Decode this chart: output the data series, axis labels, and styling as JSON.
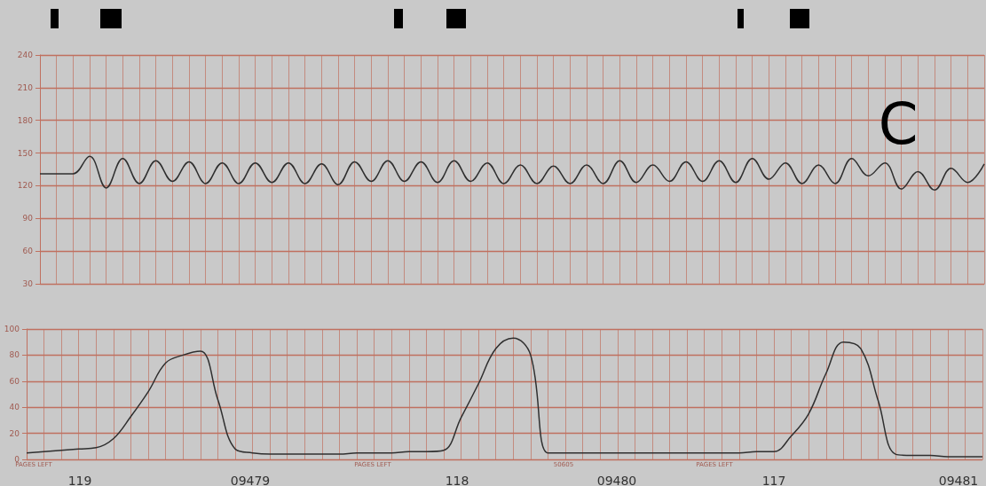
{
  "chart_data": [
    {
      "type": "line",
      "categories": [
        null,
        null,
        null,
        null,
        null,
        null,
        null,
        null,
        null,
        null,
        null,
        null,
        null,
        null,
        null,
        null,
        null,
        null,
        null,
        null,
        null,
        null,
        null,
        null,
        null,
        null,
        null,
        null,
        null,
        null,
        null,
        null,
        null,
        null,
        null,
        null,
        null,
        null,
        null,
        null,
        null,
        null,
        null,
        null,
        null,
        null,
        null,
        null,
        null,
        null,
        null,
        null,
        null,
        null,
        null,
        null,
        null,
        null
      ],
      "series": [
        {
          "color": "#2f2f2f",
          "values": [
            131,
            131,
            131,
            147,
            118,
            145,
            122,
            143,
            124,
            142,
            122,
            141,
            122,
            141,
            123,
            141,
            122,
            140,
            121,
            142,
            124,
            143,
            124,
            142,
            123,
            143,
            124,
            141,
            122,
            139,
            122,
            138,
            122,
            139,
            122,
            143,
            123,
            139,
            124,
            142,
            124,
            143,
            123,
            145,
            126,
            141,
            122,
            139,
            122,
            145,
            129,
            141,
            117,
            133,
            116,
            136,
            123,
            140
          ]
        }
      ],
      "ylim": [
        30,
        240
      ],
      "yticks": [
        30,
        60,
        90,
        120,
        150,
        180,
        210,
        240
      ],
      "grid": true,
      "tick_labels": "y",
      "marker": "none",
      "annotations": [
        "C"
      ]
    },
    {
      "type": "line",
      "categories": [
        null,
        null,
        null,
        null,
        null,
        null,
        null,
        null,
        null,
        null,
        null,
        null,
        null,
        null,
        null,
        null,
        null,
        null,
        null,
        null,
        null,
        null,
        null,
        null,
        null,
        null,
        null,
        null,
        null,
        null,
        null,
        null,
        null,
        null,
        null,
        null,
        null,
        null,
        null,
        null,
        null,
        null,
        null,
        null,
        null,
        null,
        null,
        null,
        null,
        null,
        null,
        null,
        null,
        null,
        null,
        null
      ],
      "series": [
        {
          "color": "#2f2f2f",
          "values": [
            5,
            6,
            7,
            8,
            9,
            16,
            33,
            52,
            74,
            80,
            83,
            46,
            8,
            5,
            4,
            4,
            4,
            4,
            4,
            5,
            5,
            5,
            6,
            6,
            7,
            32,
            58,
            85,
            93,
            80,
            5,
            5,
            5,
            5,
            5,
            5,
            5,
            5,
            5,
            5,
            5,
            5,
            6,
            6,
            18,
            35,
            66,
            90,
            85,
            45,
            4,
            3,
            3,
            2,
            2,
            2
          ]
        }
      ],
      "ylim": [
        0,
        100
      ],
      "yticks": [
        0,
        20,
        40,
        60,
        80,
        100
      ],
      "grid": true,
      "tick_labels": "y",
      "marker": "none",
      "annotations": [
        "PAGES LEFT",
        "119",
        "09479",
        "PAGES LEFT",
        "118",
        "50605",
        "09480",
        "PAGES LEFT",
        "117",
        "09481"
      ]
    }
  ]
}
